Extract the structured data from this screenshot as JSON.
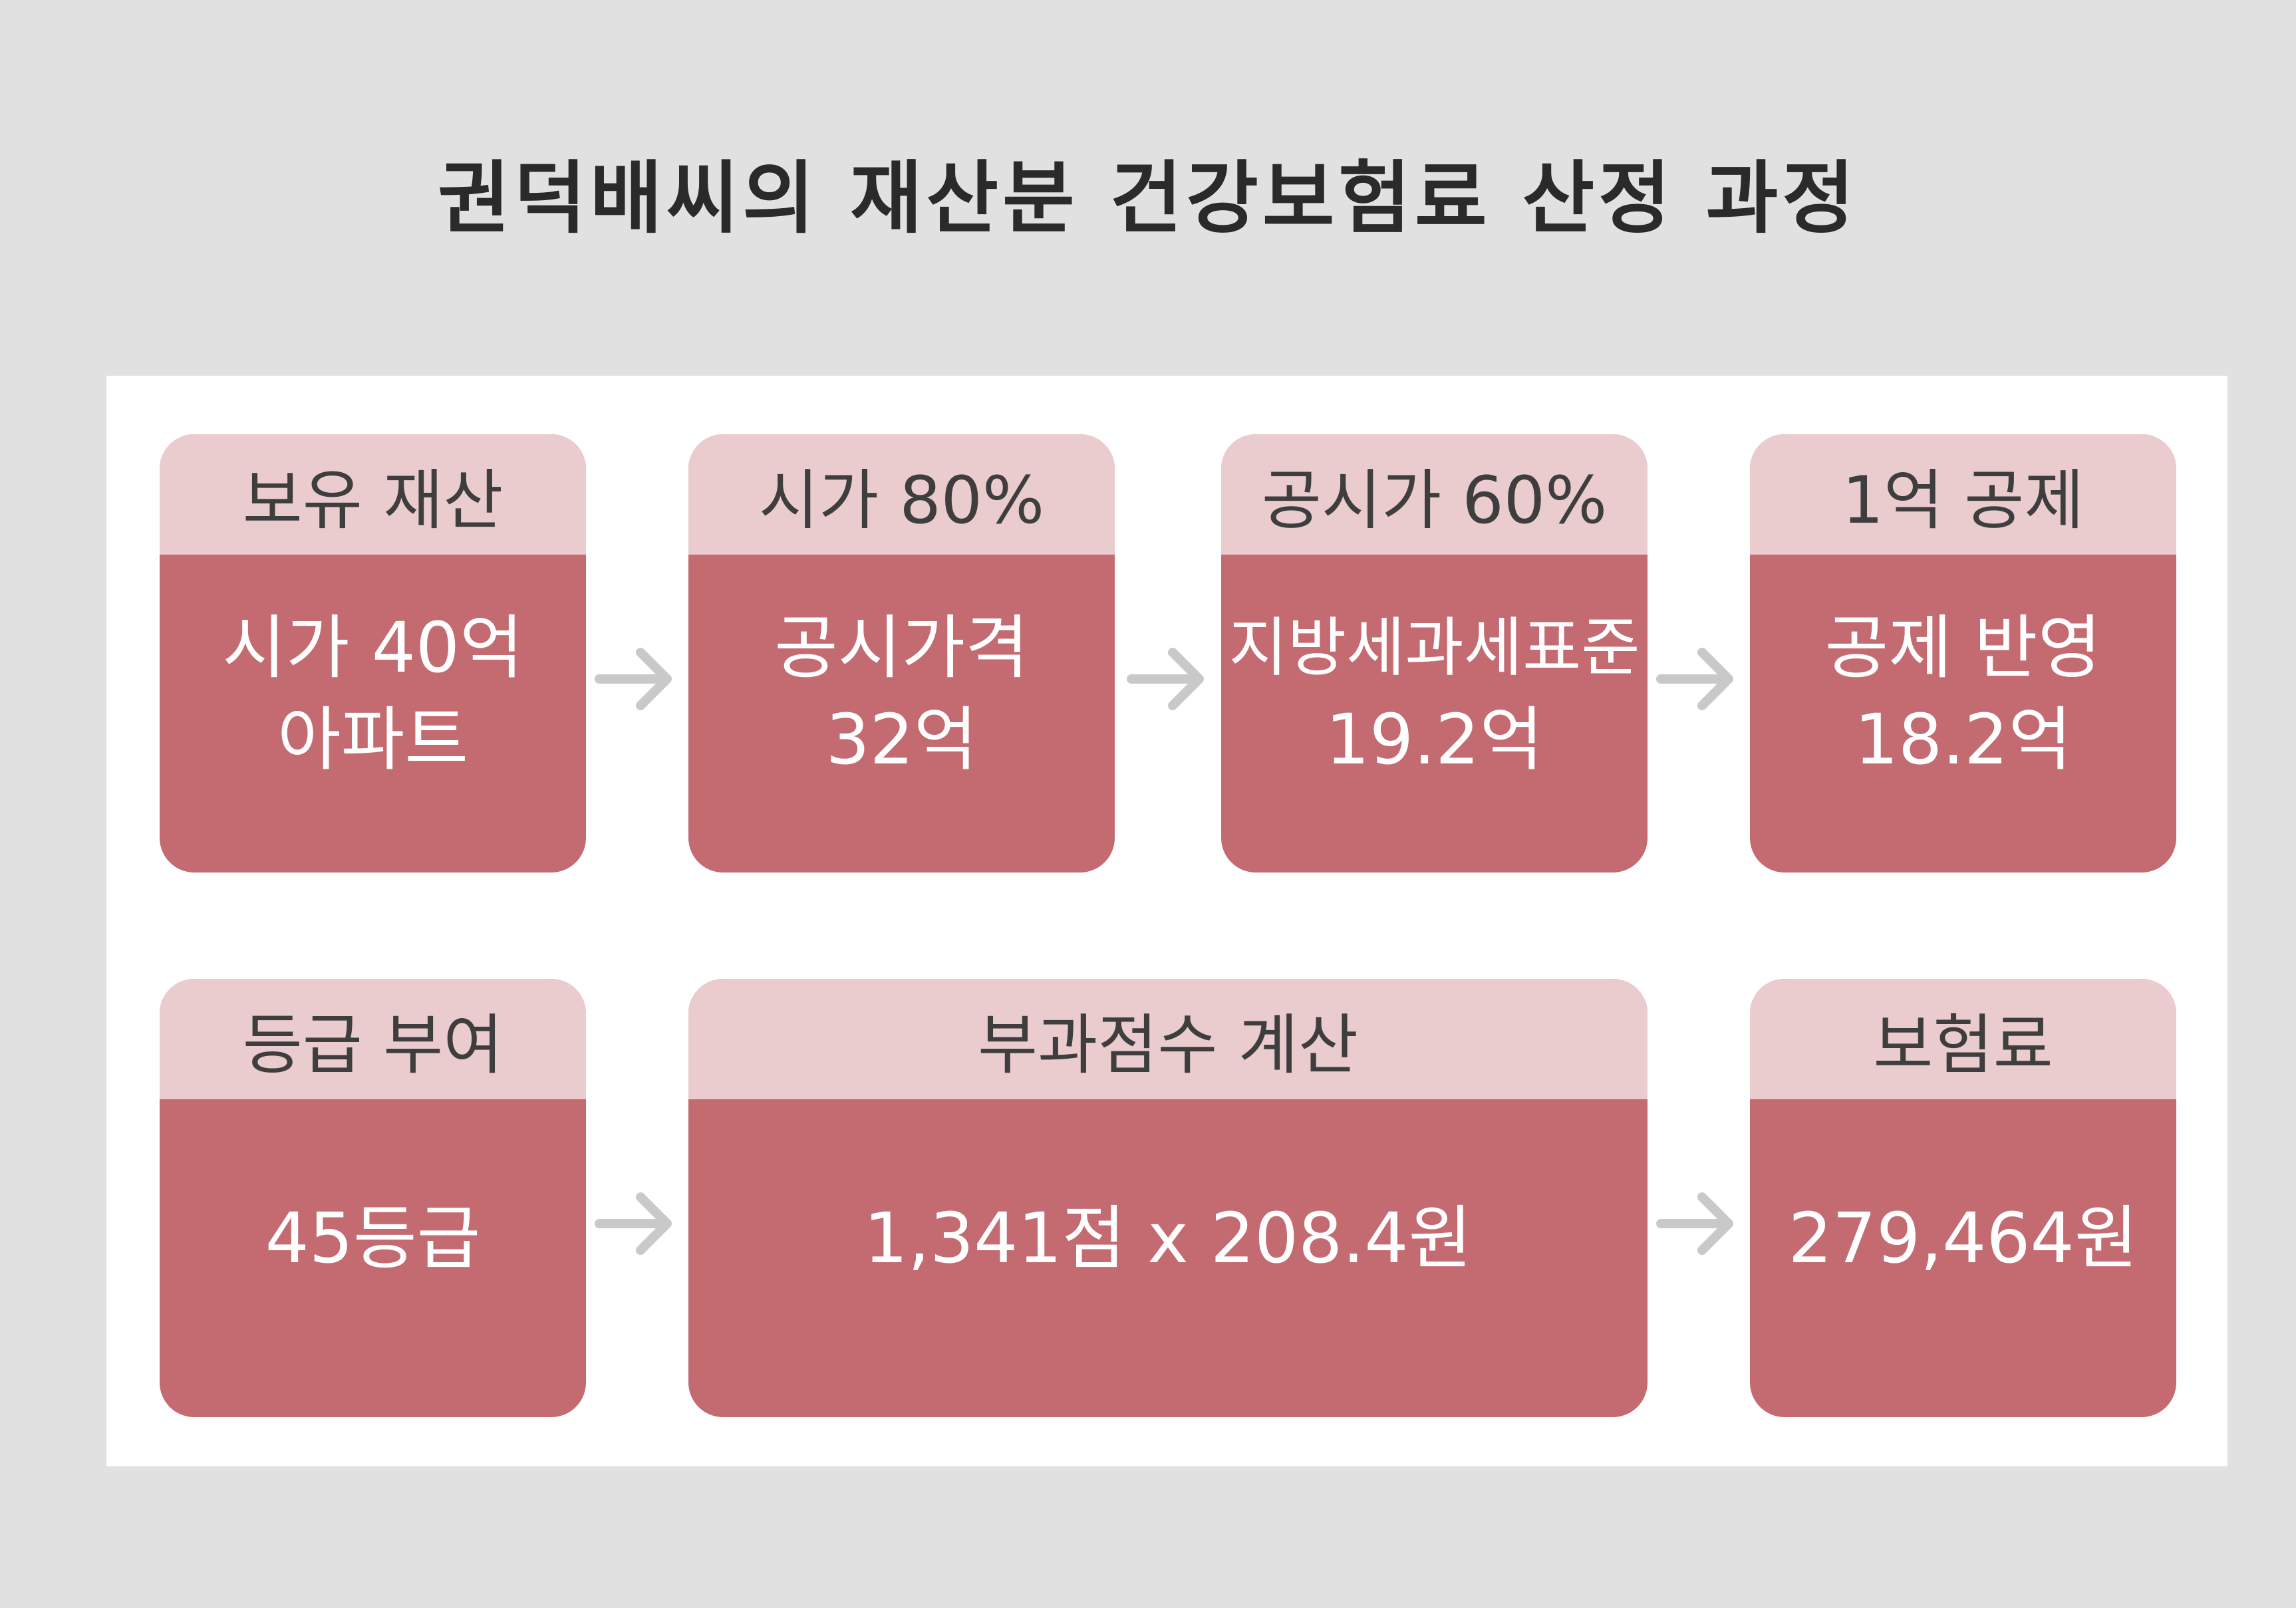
{
  "title": "권덕배씨의 재산분 건강보험료 산정 과정",
  "colors": {
    "background": "#e1e1e1",
    "panel": "#ffffff",
    "card_header": "#eacbce",
    "card_body": "#c46a71",
    "arrow": "#c9c9c9"
  },
  "steps": [
    {
      "header": "보유 재산",
      "lines": [
        "시가 40억",
        "아파트"
      ]
    },
    {
      "header": "시가 80%",
      "lines": [
        "공시가격",
        "32억"
      ]
    },
    {
      "header": "공시가 60%",
      "lines": [
        "지방세과세표준",
        "19.2억"
      ]
    },
    {
      "header": "1억 공제",
      "lines": [
        "공제 반영",
        "18.2억"
      ]
    },
    {
      "header": "등급 부여",
      "lines": [
        "45등급"
      ]
    },
    {
      "header": "부과점수 계산",
      "lines": [
        "1,341점 x 208.4원"
      ]
    },
    {
      "header": "보험료",
      "lines": [
        "279,464원"
      ]
    }
  ],
  "arrows": [
    {
      "from": "보유 재산",
      "to": "시가 80%",
      "icon": "arrow-right-icon"
    },
    {
      "from": "시가 80%",
      "to": "공시가 60%",
      "icon": "arrow-right-icon"
    },
    {
      "from": "공시가 60%",
      "to": "1억 공제",
      "icon": "arrow-right-icon"
    },
    {
      "from": "등급 부여",
      "to": "부과점수 계산",
      "icon": "arrow-right-icon"
    },
    {
      "from": "부과점수 계산",
      "to": "보험료",
      "icon": "arrow-right-icon"
    }
  ]
}
